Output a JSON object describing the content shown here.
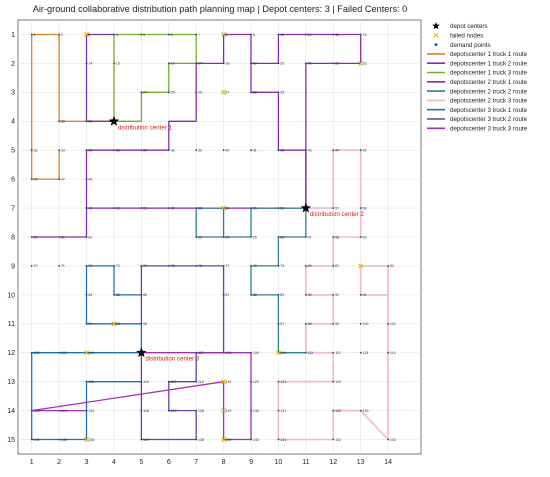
{
  "chart_data": {
    "type": "line",
    "title": "Air-ground collaborative distribution path planning map | Depot centers: 3 | Failed Centers: 0",
    "xlabel": "",
    "ylabel": "",
    "xlim": [
      0.5,
      15.2
    ],
    "ylim": [
      15.5,
      0.5
    ],
    "y_axis_reversed": true,
    "xticks": [
      1,
      2,
      3,
      4,
      5,
      6,
      7,
      8,
      9,
      10,
      11,
      12,
      13,
      14
    ],
    "yticks": [
      1,
      2,
      3,
      4,
      5,
      6,
      7,
      8,
      9,
      10,
      11,
      12,
      13,
      14,
      15
    ],
    "grid": true,
    "legend_position": "outside-right",
    "legend": [
      {
        "name": "depot centers",
        "marker": "star",
        "color": "#000000"
      },
      {
        "name": "failed nodes",
        "marker": "x",
        "color": "#e8b400"
      },
      {
        "name": "demand points",
        "marker": "dot",
        "color": "#1f3d99"
      },
      {
        "name": "depotscenter 1 truck 1 route",
        "color": "#e0821e"
      },
      {
        "name": "depotscenter 1 truck 2 route",
        "color": "#7a2fa0"
      },
      {
        "name": "depotscenter 1 truck 3 route",
        "color": "#77a82a"
      },
      {
        "name": "depotscenter 2 truck 1 route",
        "color": "#8a2aa8"
      },
      {
        "name": "depotscenter 2 truck 2 route",
        "color": "#2f7f8a"
      },
      {
        "name": "depotscenter 2 truck 3 route",
        "color": "#f2b8d0"
      },
      {
        "name": "depotscenter 3 truck 1 route",
        "color": "#1e6fb8"
      },
      {
        "name": "depotscenter 3 truck 2 route",
        "color": "#6a3da8"
      },
      {
        "name": "depotscenter 3 truck 3 route",
        "color": "#a02fb8"
      }
    ],
    "depots": [
      {
        "x": 4,
        "y": 4,
        "label": "distribution center 1"
      },
      {
        "x": 11,
        "y": 7,
        "label": "distribution center 2"
      },
      {
        "x": 5,
        "y": 12,
        "label": "distribution center 3"
      }
    ],
    "failed_nodes": [
      [
        3,
        1
      ],
      [
        8,
        1
      ],
      [
        13,
        2
      ],
      [
        8,
        3
      ],
      [
        8,
        7
      ],
      [
        13,
        9
      ],
      [
        4,
        11
      ],
      [
        3,
        12
      ],
      [
        10,
        12
      ],
      [
        8,
        13
      ],
      [
        8,
        14
      ],
      [
        3,
        15
      ],
      [
        8,
        15
      ]
    ],
    "demand_points": [
      {
        "id": 1,
        "x": 1,
        "y": 1
      },
      {
        "id": 2,
        "x": 2,
        "y": 1
      },
      {
        "id": 3,
        "x": 3,
        "y": 1
      },
      {
        "id": 4,
        "x": 4,
        "y": 1
      },
      {
        "id": 5,
        "x": 5,
        "y": 1
      },
      {
        "id": 6,
        "x": 6,
        "y": 1
      },
      {
        "id": 7,
        "x": 7,
        "y": 1
      },
      {
        "id": 8,
        "x": 8,
        "y": 1
      },
      {
        "id": 9,
        "x": 9,
        "y": 1
      },
      {
        "id": 10,
        "x": 10,
        "y": 1
      },
      {
        "id": 11,
        "x": 11,
        "y": 1
      },
      {
        "id": 12,
        "x": 12,
        "y": 1
      },
      {
        "id": 13,
        "x": 13,
        "y": 1
      },
      {
        "id": 14,
        "x": 3,
        "y": 2
      },
      {
        "id": 15,
        "x": 4,
        "y": 2
      },
      {
        "id": 16,
        "x": 6,
        "y": 2
      },
      {
        "id": 17,
        "x": 7,
        "y": 2
      },
      {
        "id": 18,
        "x": 8,
        "y": 2
      },
      {
        "id": 19,
        "x": 9,
        "y": 2
      },
      {
        "id": 20,
        "x": 10,
        "y": 2
      },
      {
        "id": 21,
        "x": 11,
        "y": 2
      },
      {
        "id": 22,
        "x": 12,
        "y": 2
      },
      {
        "id": 23,
        "x": 13,
        "y": 2
      },
      {
        "id": 24,
        "x": 5,
        "y": 3
      },
      {
        "id": 25,
        "x": 6,
        "y": 3
      },
      {
        "id": 26,
        "x": 7,
        "y": 3
      },
      {
        "id": 27,
        "x": 8,
        "y": 3
      },
      {
        "id": 28,
        "x": 9,
        "y": 3
      },
      {
        "id": 29,
        "x": 10,
        "y": 3
      },
      {
        "id": 30,
        "x": 2,
        "y": 4
      },
      {
        "id": 31,
        "x": 3,
        "y": 4
      },
      {
        "id": 32,
        "x": 1,
        "y": 5
      },
      {
        "id": 33,
        "x": 2,
        "y": 5
      },
      {
        "id": 35,
        "x": 3,
        "y": 5
      },
      {
        "id": 36,
        "x": 4,
        "y": 5
      },
      {
        "id": 37,
        "x": 5,
        "y": 5
      },
      {
        "id": 38,
        "x": 6,
        "y": 5
      },
      {
        "id": 39,
        "x": 7,
        "y": 5
      },
      {
        "id": 40,
        "x": 8,
        "y": 5
      },
      {
        "id": 41,
        "x": 9,
        "y": 5
      },
      {
        "id": 42,
        "x": 10,
        "y": 5
      },
      {
        "id": 43,
        "x": 11,
        "y": 5
      },
      {
        "id": 44,
        "x": 12,
        "y": 5
      },
      {
        "id": 45,
        "x": 13,
        "y": 5
      },
      {
        "id": 46,
        "x": 1,
        "y": 6
      },
      {
        "id": 47,
        "x": 2,
        "y": 6
      },
      {
        "id": 48,
        "x": 3,
        "y": 6
      },
      {
        "id": 49,
        "x": 3,
        "y": 7
      },
      {
        "id": 50,
        "x": 4,
        "y": 7
      },
      {
        "id": 51,
        "x": 5,
        "y": 7
      },
      {
        "id": 52,
        "x": 6,
        "y": 7
      },
      {
        "id": 53,
        "x": 7,
        "y": 7
      },
      {
        "id": 54,
        "x": 8,
        "y": 7
      },
      {
        "id": 55,
        "x": 9,
        "y": 7
      },
      {
        "id": 56,
        "x": 10,
        "y": 7
      },
      {
        "id": 57,
        "x": 12,
        "y": 7
      },
      {
        "id": 58,
        "x": 13,
        "y": 7
      },
      {
        "id": 60,
        "x": 1,
        "y": 8
      },
      {
        "id": 61,
        "x": 2,
        "y": 8
      },
      {
        "id": 62,
        "x": 3,
        "y": 8
      },
      {
        "id": 63,
        "x": 7,
        "y": 8
      },
      {
        "id": 64,
        "x": 8,
        "y": 8
      },
      {
        "id": 65,
        "x": 9,
        "y": 8
      },
      {
        "id": 66,
        "x": 10,
        "y": 8
      },
      {
        "id": 67,
        "x": 11,
        "y": 8
      },
      {
        "id": 68,
        "x": 12,
        "y": 8
      },
      {
        "id": 69,
        "x": 13,
        "y": 8
      },
      {
        "id": 70,
        "x": 1,
        "y": 9
      },
      {
        "id": 71,
        "x": 2,
        "y": 9
      },
      {
        "id": 72,
        "x": 3,
        "y": 9
      },
      {
        "id": 73,
        "x": 4,
        "y": 9
      },
      {
        "id": 74,
        "x": 5,
        "y": 9
      },
      {
        "id": 75,
        "x": 6,
        "y": 9
      },
      {
        "id": 76,
        "x": 7,
        "y": 9
      },
      {
        "id": 77,
        "x": 8,
        "y": 9
      },
      {
        "id": 78,
        "x": 9,
        "y": 9
      },
      {
        "id": 79,
        "x": 10,
        "y": 9
      },
      {
        "id": 80,
        "x": 11,
        "y": 9
      },
      {
        "id": 81,
        "x": 12,
        "y": 9
      },
      {
        "id": 82,
        "x": 14,
        "y": 9
      },
      {
        "id": 84,
        "x": 3,
        "y": 10
      },
      {
        "id": 85,
        "x": 4,
        "y": 10
      },
      {
        "id": 86,
        "x": 5,
        "y": 10
      },
      {
        "id": 87,
        "x": 8,
        "y": 10
      },
      {
        "id": 88,
        "x": 9,
        "y": 10
      },
      {
        "id": 89,
        "x": 10,
        "y": 10
      },
      {
        "id": 90,
        "x": 11,
        "y": 10
      },
      {
        "id": 91,
        "x": 12,
        "y": 10
      },
      {
        "id": 92,
        "x": 13,
        "y": 10
      },
      {
        "id": 94,
        "x": 3,
        "y": 11
      },
      {
        "id": 95,
        "x": 4,
        "y": 11
      },
      {
        "id": 96,
        "x": 5,
        "y": 11
      },
      {
        "id": 97,
        "x": 10,
        "y": 11
      },
      {
        "id": 98,
        "x": 11,
        "y": 11
      },
      {
        "id": 99,
        "x": 12,
        "y": 11
      },
      {
        "id": 100,
        "x": 13,
        "y": 11
      },
      {
        "id": 101,
        "x": 14,
        "y": 11
      },
      {
        "id": 102,
        "x": 1,
        "y": 12
      },
      {
        "id": 103,
        "x": 2,
        "y": 12
      },
      {
        "id": 104,
        "x": 3,
        "y": 12
      },
      {
        "id": 107,
        "x": 7,
        "y": 12
      },
      {
        "id": 108,
        "x": 8,
        "y": 12
      },
      {
        "id": 109,
        "x": 9,
        "y": 12
      },
      {
        "id": 110,
        "x": 10,
        "y": 12
      },
      {
        "id": 111,
        "x": 11,
        "y": 12
      },
      {
        "id": 112,
        "x": 12,
        "y": 12
      },
      {
        "id": 113,
        "x": 13,
        "y": 12
      },
      {
        "id": 114,
        "x": 14,
        "y": 12
      },
      {
        "id": 115,
        "x": 3,
        "y": 13
      },
      {
        "id": 116,
        "x": 5,
        "y": 13
      },
      {
        "id": 117,
        "x": 6,
        "y": 13
      },
      {
        "id": 118,
        "x": 7,
        "y": 13
      },
      {
        "id": 119,
        "x": 8,
        "y": 13
      },
      {
        "id": 120,
        "x": 9,
        "y": 13
      },
      {
        "id": 121,
        "x": 10,
        "y": 13
      },
      {
        "id": 122,
        "x": 12,
        "y": 13
      },
      {
        "id": 123,
        "x": 1,
        "y": 14
      },
      {
        "id": 124,
        "x": 2,
        "y": 14
      },
      {
        "id": 125,
        "x": 3,
        "y": 14
      },
      {
        "id": 126,
        "x": 5,
        "y": 14
      },
      {
        "id": 127,
        "x": 6,
        "y": 14
      },
      {
        "id": 128,
        "x": 7,
        "y": 14
      },
      {
        "id": 129,
        "x": 8,
        "y": 14
      },
      {
        "id": 130,
        "x": 9,
        "y": 14
      },
      {
        "id": 131,
        "x": 10,
        "y": 14
      },
      {
        "id": 132,
        "x": 12,
        "y": 14
      },
      {
        "id": 133,
        "x": 13,
        "y": 14
      },
      {
        "id": 134,
        "x": 1,
        "y": 15
      },
      {
        "id": 135,
        "x": 2,
        "y": 15
      },
      {
        "id": 136,
        "x": 3,
        "y": 15
      },
      {
        "id": 137,
        "x": 5,
        "y": 15
      },
      {
        "id": 138,
        "x": 7,
        "y": 15
      },
      {
        "id": 139,
        "x": 8,
        "y": 15
      },
      {
        "id": 140,
        "x": 9,
        "y": 15
      },
      {
        "id": 141,
        "x": 10,
        "y": 15
      },
      {
        "id": 142,
        "x": 12,
        "y": 15
      },
      {
        "id": 143,
        "x": 14,
        "y": 15
      }
    ],
    "series": [
      {
        "name": "depotscenter 1 truck 1 route",
        "color": "#e0821e",
        "points": [
          [
            4,
            4
          ],
          [
            2,
            4
          ],
          [
            2,
            1
          ],
          [
            1,
            1
          ],
          [
            1,
            6
          ],
          [
            2,
            6
          ],
          [
            2,
            5
          ]
        ]
      },
      {
        "name": "depotscenter 1 truck 2 route",
        "color": "#7a2fa0",
        "points": [
          [
            4,
            4
          ],
          [
            3,
            4
          ],
          [
            3,
            1
          ],
          [
            4,
            1
          ]
        ]
      },
      {
        "name": "depotscenter 1 truck 3 route",
        "color": "#77a82a",
        "points": [
          [
            4,
            4
          ],
          [
            4,
            1
          ],
          [
            7,
            1
          ],
          [
            7,
            2
          ],
          [
            6,
            2
          ],
          [
            6,
            3
          ],
          [
            5,
            3
          ],
          [
            5,
            4
          ],
          [
            4,
            4
          ]
        ]
      },
      {
        "name": "depotscenter 2 truck 1 route",
        "color": "#8a2aa8",
        "points": [
          [
            11,
            7
          ],
          [
            11,
            5
          ],
          [
            10,
            5
          ],
          [
            10,
            3
          ],
          [
            9,
            3
          ],
          [
            9,
            1
          ],
          [
            8,
            1
          ],
          [
            8,
            2
          ],
          [
            7,
            2
          ],
          [
            7,
            4
          ],
          [
            6,
            4
          ],
          [
            6,
            5
          ],
          [
            3,
            5
          ],
          [
            3,
            8
          ],
          [
            1,
            8
          ]
        ]
      },
      {
        "name": "depotscenter 2 truck 1 route",
        "color": "#8a2aa8",
        "points": [
          [
            11,
            7
          ],
          [
            11,
            2
          ],
          [
            13,
            2
          ],
          [
            13,
            1
          ],
          [
            10,
            1
          ],
          [
            10,
            2
          ],
          [
            9,
            2
          ]
        ]
      },
      {
        "name": "depotscenter 2 truck 1 route",
        "color": "#8a2aa8",
        "points": [
          [
            11,
            7
          ],
          [
            3,
            7
          ]
        ]
      },
      {
        "name": "depotscenter 2 truck 2 route",
        "color": "#2f7f8a",
        "points": [
          [
            11,
            7
          ],
          [
            9,
            7
          ],
          [
            9,
            8
          ],
          [
            7,
            8
          ],
          [
            7,
            7
          ],
          [
            8,
            7
          ],
          [
            8,
            8
          ]
        ]
      },
      {
        "name": "depotscenter 2 truck 2 route",
        "color": "#2f7f8a",
        "points": [
          [
            11,
            7
          ],
          [
            11,
            8
          ],
          [
            10,
            8
          ],
          [
            10,
            9
          ],
          [
            9,
            9
          ],
          [
            9,
            10
          ],
          [
            10,
            10
          ],
          [
            10,
            12
          ],
          [
            11,
            12
          ],
          [
            11,
            11
          ]
        ]
      },
      {
        "name": "depotscenter 2 truck 3 route",
        "color": "#f2b8d0",
        "points": [
          [
            11,
            7
          ],
          [
            12,
            7
          ],
          [
            12,
            5
          ],
          [
            13,
            5
          ],
          [
            13,
            8
          ],
          [
            12,
            8
          ],
          [
            12,
            9
          ],
          [
            11,
            9
          ],
          [
            11,
            10
          ],
          [
            12,
            10
          ],
          [
            12,
            11
          ],
          [
            11,
            11
          ],
          [
            11,
            12
          ],
          [
            12,
            12
          ],
          [
            12,
            13
          ],
          [
            10,
            13
          ],
          [
            10,
            15
          ],
          [
            12,
            15
          ],
          [
            12,
            14
          ],
          [
            13,
            14
          ],
          [
            14,
            15
          ],
          [
            14,
            9
          ],
          [
            13,
            9
          ],
          [
            13,
            10
          ],
          [
            14,
            10
          ]
        ]
      },
      {
        "name": "depotscenter 3 truck 1 route",
        "color": "#1e6fb8",
        "points": [
          [
            5,
            12
          ],
          [
            1,
            12
          ],
          [
            1,
            15
          ],
          [
            3,
            15
          ],
          [
            3,
            13
          ],
          [
            5,
            13
          ]
        ]
      },
      {
        "name": "depotscenter 3 truck 1 route",
        "color": "#1e6fb8",
        "points": [
          [
            5,
            12
          ],
          [
            5,
            11
          ],
          [
            3,
            11
          ],
          [
            3,
            9
          ],
          [
            4,
            9
          ],
          [
            4,
            10
          ],
          [
            5,
            10
          ]
        ]
      },
      {
        "name": "depotscenter 3 truck 2 route",
        "color": "#6a3da8",
        "points": [
          [
            5,
            12
          ],
          [
            5,
            15
          ],
          [
            7,
            15
          ],
          [
            7,
            14
          ],
          [
            6,
            14
          ],
          [
            6,
            13
          ],
          [
            7,
            13
          ],
          [
            7,
            12
          ],
          [
            8,
            12
          ],
          [
            8,
            10
          ],
          [
            8,
            9
          ],
          [
            5,
            9
          ],
          [
            5,
            11
          ]
        ]
      },
      {
        "name": "depotscenter 3 truck 3 route",
        "color": "#a02fb8",
        "points": [
          [
            5,
            12
          ],
          [
            9,
            12
          ],
          [
            9,
            15
          ],
          [
            8,
            15
          ],
          [
            8,
            13
          ],
          [
            1,
            14
          ],
          [
            3,
            14
          ]
        ]
      }
    ]
  }
}
